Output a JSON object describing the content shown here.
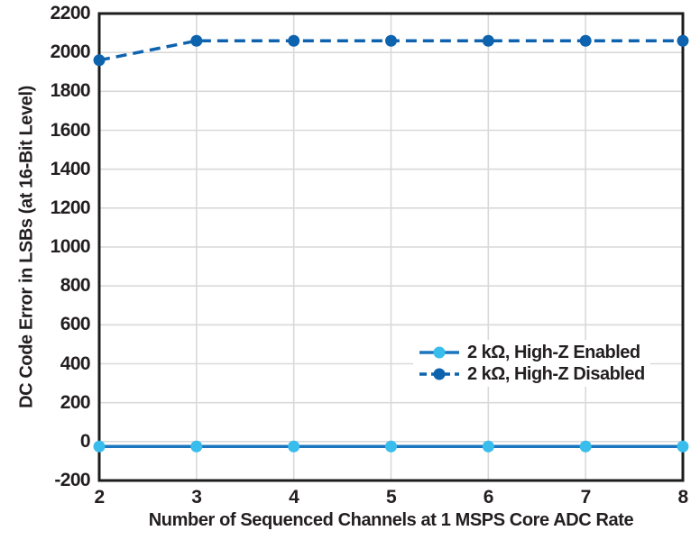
{
  "chart_data": {
    "type": "line",
    "x": [
      2,
      3,
      4,
      5,
      6,
      7,
      8
    ],
    "series": [
      {
        "name": "2 kΩ, High-Z Enabled",
        "values": [
          -25,
          -25,
          -25,
          -25,
          -25,
          -25,
          -25
        ],
        "line_color": "#1b76bd",
        "marker_color": "#38bdec",
        "dashed": false
      },
      {
        "name": "2 kΩ, High-Z Disabled",
        "values": [
          1960,
          2060,
          2060,
          2060,
          2060,
          2060,
          2060
        ],
        "line_color": "#0e63ae",
        "marker_color": "#0e63ae",
        "dashed": true
      }
    ],
    "xlabel": "Number of Sequenced Channels at 1 MSPS Core ADC Rate",
    "ylabel": "DC Code Error in LSBs (at 16-Bit Level)",
    "xlim": [
      2,
      8
    ],
    "ylim": [
      -200,
      2200
    ],
    "xticks": [
      2,
      3,
      4,
      5,
      6,
      7,
      8
    ],
    "yticks": [
      2200,
      2000,
      1800,
      1600,
      1400,
      1200,
      1000,
      800,
      600,
      400,
      200,
      0,
      -200
    ],
    "grid": true,
    "legend_position": "inside-lower-right",
    "colors": {
      "grid": "#d9d9d9",
      "axis": "#1c1c1c",
      "text": "#231f20",
      "background": "#ffffff"
    }
  }
}
